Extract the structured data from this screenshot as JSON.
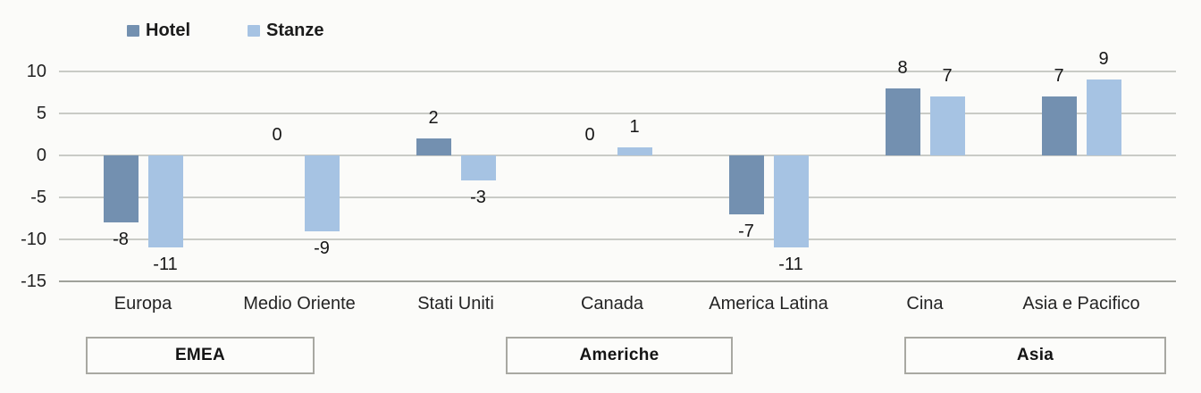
{
  "chart_data": {
    "type": "bar",
    "title": "",
    "xlabel": "",
    "ylabel": "",
    "categories": [
      "Europa",
      "Medio Oriente",
      "Stati Uniti",
      "Canada",
      "America Latina",
      "Cina",
      "Asia e Pacifico"
    ],
    "series": [
      {
        "name": "Hotel",
        "color": "#7390b0",
        "values": [
          -8,
          0,
          2,
          0,
          -7,
          8,
          7
        ]
      },
      {
        "name": "Stanze",
        "color": "#a6c3e3",
        "values": [
          -11,
          -9,
          -3,
          1,
          -11,
          7,
          9
        ]
      }
    ],
    "data_labels": {
      "Hotel": [
        "-8",
        "0",
        "2",
        "0",
        "-7",
        "8",
        "7"
      ],
      "Stanze": [
        "-11",
        "-9",
        "-3",
        "1",
        "-11",
        "7",
        "9"
      ]
    },
    "groups": [
      {
        "label": "EMEA",
        "from": 0,
        "to": 1
      },
      {
        "label": "Americhe",
        "from": 2,
        "to": 4
      },
      {
        "label": "Asia",
        "from": 5,
        "to": 6
      }
    ],
    "yticks": [
      "10",
      "5",
      "0",
      "-5",
      "-10",
      "-15"
    ],
    "ylim": [
      -15,
      10
    ],
    "grid": true,
    "legend_position": "top-left",
    "colors": {
      "hotel_bar": "#7390b0",
      "stanze_bar": "#a6c3e3",
      "gridline": "#c9cbc6",
      "axis_line": "#9fa19b",
      "box_border": "#a8a8a2",
      "text": "#1e1e1e",
      "background": "#fbfbf9"
    }
  }
}
